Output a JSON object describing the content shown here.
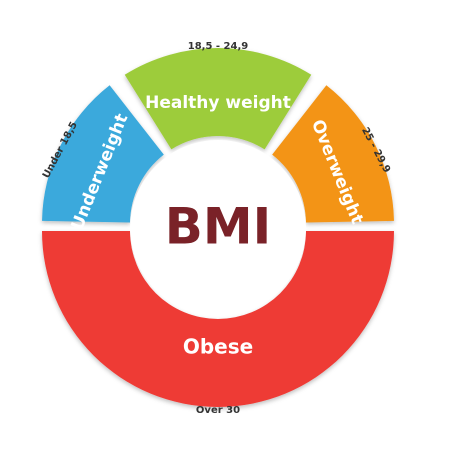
{
  "center_label": "BMI",
  "segments": [
    {
      "label": "Underweight",
      "range": "Under 18,5"
    },
    {
      "label": "Healthy weight",
      "range": "18,5 - 24,9"
    },
    {
      "label": "Overweight",
      "range": "25 - 29,9"
    },
    {
      "label": "Obese",
      "range": "Over 30"
    }
  ]
}
